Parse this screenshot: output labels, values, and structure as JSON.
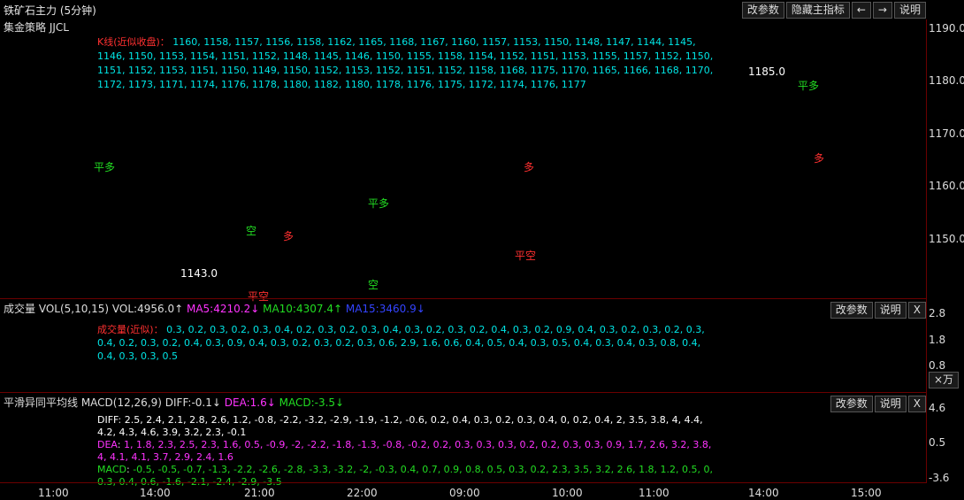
{
  "window": {
    "title": "铁矿石主力 (5分钟)",
    "buttons": [
      "改参数",
      "隐藏主指标",
      "←",
      "→",
      "说明"
    ]
  },
  "main_panel": {
    "subtitle": "集金策略 JJCL",
    "y_ticks": [
      "1190.0",
      "1180.0",
      "1170.0",
      "1160.0",
      "1150.0"
    ],
    "annotations": {
      "low_price": "1143.0",
      "high_price": "1185.0",
      "signals": [
        "平多",
        "空",
        "多",
        "平空",
        "平多",
        "空",
        "多",
        "平空",
        "平多",
        "多"
      ]
    }
  },
  "volume_panel": {
    "title": "成交量 VOL(5,10,15) VOL:4956.0↑",
    "ma5": "MA5:4210.2↓",
    "ma10": "MA10:4307.4↑",
    "ma15": "MA15:3460.9↓",
    "buttons": [
      "改参数",
      "说明",
      "X"
    ],
    "y_ticks": [
      "2.8",
      "1.8",
      "0.8"
    ],
    "unit": "×万"
  },
  "macd_panel": {
    "title": "平滑异同平均线 MACD(12,26,9) DIFF:-0.1↓",
    "dea": "DEA:1.6↓",
    "macd": "MACD:-3.5↓",
    "buttons": [
      "改参数",
      "说明",
      "X"
    ],
    "y_ticks": [
      "4.6",
      "0.5",
      "-3.6"
    ]
  },
  "x_axis": {
    "labels": [
      "11:00",
      "14:00",
      "21:00",
      "22:00",
      "09:00",
      "10:00",
      "11:00",
      "14:00",
      "15:00"
    ]
  },
  "colors": {
    "background": "#000000",
    "up": "#ff2020",
    "down": "#00e5e5",
    "grid": "#6b0000",
    "ma5": "#ff33ff",
    "ma10": "#22dd22",
    "ma15": "#3344ff"
  },
  "chart_data": [
    {
      "type": "candlestick",
      "title": "铁矿石主力 (5分钟)",
      "x_labels": [
        "11:00",
        "14:00",
        "21:00",
        "22:00",
        "09:00",
        "10:00",
        "11:00",
        "14:00",
        "15:00"
      ],
      "y_range": [
        1140,
        1192
      ],
      "annotated_low": 1143.0,
      "annotated_high": 1185.0,
      "close_approx": [
        1160,
        1158,
        1157,
        1156,
        1158,
        1162,
        1165,
        1168,
        1167,
        1160,
        1157,
        1153,
        1150,
        1148,
        1147,
        1144,
        1145,
        1146,
        1150,
        1153,
        1154,
        1151,
        1152,
        1148,
        1145,
        1146,
        1150,
        1155,
        1158,
        1154,
        1152,
        1151,
        1153,
        1155,
        1157,
        1152,
        1150,
        1151,
        1152,
        1153,
        1151,
        1150,
        1149,
        1150,
        1152,
        1153,
        1152,
        1151,
        1152,
        1158,
        1168,
        1175,
        1170,
        1165,
        1166,
        1168,
        1170,
        1172,
        1173,
        1171,
        1174,
        1176,
        1178,
        1180,
        1182,
        1180,
        1178,
        1176,
        1175,
        1172,
        1174,
        1176,
        1177
      ]
    },
    {
      "type": "bar",
      "title": "成交量 VOL(5,10,15)",
      "unit": "×万",
      "y_ticks": [
        0.8,
        1.8,
        2.8
      ],
      "values_approx": [
        0.3,
        0.2,
        0.3,
        0.2,
        0.3,
        0.4,
        0.2,
        0.3,
        0.2,
        0.3,
        0.4,
        0.3,
        0.2,
        0.3,
        0.2,
        0.4,
        0.3,
        0.2,
        0.9,
        0.4,
        0.3,
        0.2,
        0.3,
        0.2,
        0.3,
        0.4,
        0.2,
        0.3,
        0.2,
        0.4,
        0.3,
        0.9,
        0.4,
        0.3,
        0.2,
        0.3,
        0.2,
        0.3,
        0.6,
        2.9,
        1.6,
        0.6,
        0.4,
        0.5,
        0.4,
        0.3,
        0.5,
        0.4,
        0.3,
        0.4,
        0.3,
        0.8,
        0.4,
        0.4,
        0.3,
        0.3,
        0.5
      ]
    },
    {
      "type": "line",
      "title": "平滑异同平均线 MACD(12,26,9)",
      "y_ticks": [
        -3.6,
        0.5,
        4.6
      ],
      "series": [
        {
          "name": "DIFF",
          "values_approx": [
            2.5,
            2.4,
            2.1,
            2.8,
            2.6,
            1.2,
            -0.8,
            -2.2,
            -3.2,
            -2.9,
            -1.9,
            -1.2,
            -0.6,
            0.2,
            0.4,
            0.3,
            0.2,
            0.3,
            0.4,
            0.0,
            0.2,
            0.4,
            2.0,
            3.5,
            3.8,
            4.0,
            4.4,
            4.2,
            4.3,
            4.6,
            3.9,
            3.2,
            2.3,
            -0.1
          ]
        },
        {
          "name": "DEA",
          "values_approx": [
            1.0,
            1.8,
            2.3,
            2.5,
            2.3,
            1.6,
            0.5,
            -0.9,
            -2.0,
            -2.2,
            -1.8,
            -1.3,
            -0.8,
            -0.2,
            0.2,
            0.3,
            0.3,
            0.3,
            0.2,
            0.2,
            0.3,
            0.3,
            0.9,
            1.7,
            2.6,
            3.2,
            3.8,
            4.0,
            4.1,
            4.1,
            3.7,
            2.9,
            2.4,
            1.6
          ]
        },
        {
          "name": "MACD",
          "values_approx": [
            -0.5,
            -0.5,
            -0.7,
            -1.3,
            -2.2,
            -2.6,
            -2.8,
            -3.3,
            -3.2,
            -2.0,
            -0.3,
            0.4,
            0.7,
            0.9,
            0.8,
            0.5,
            0.3,
            0.2,
            2.3,
            3.5,
            3.2,
            2.6,
            1.8,
            1.2,
            0.5,
            0.0,
            0.3,
            0.4,
            0.6,
            -1.6,
            -2.1,
            -2.4,
            -2.9,
            -3.5
          ]
        }
      ]
    }
  ]
}
